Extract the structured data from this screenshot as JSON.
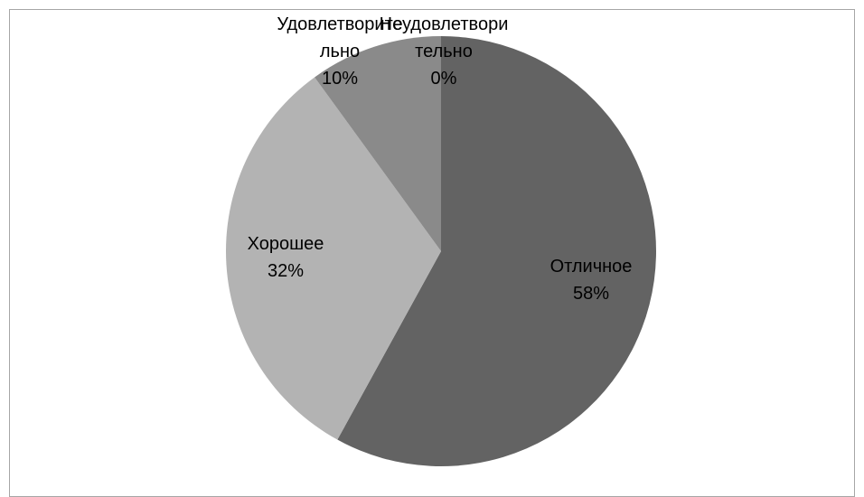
{
  "chart_data": {
    "type": "pie",
    "title": "",
    "slices": [
      {
        "name": "Отличное",
        "value": 58,
        "label_lines": [
          "Отличное",
          "58%"
        ],
        "color": "#636363"
      },
      {
        "name": "Хорошее",
        "value": 32,
        "label_lines": [
          "Хорошее",
          "32%"
        ],
        "color": "#b3b3b3"
      },
      {
        "name": "Удовлетворительно",
        "value": 10,
        "label_lines": [
          "Удовлетворите",
          "льно",
          "10%"
        ],
        "color": "#8a8a8a"
      },
      {
        "name": "Неудовлетворительно",
        "value": 0,
        "label_lines": [
          "Неудовлетвори",
          "тельно",
          "0%"
        ],
        "color": "#4a4a4a"
      }
    ],
    "legend": "none",
    "start_angle_deg": 0,
    "direction": "clockwise"
  }
}
